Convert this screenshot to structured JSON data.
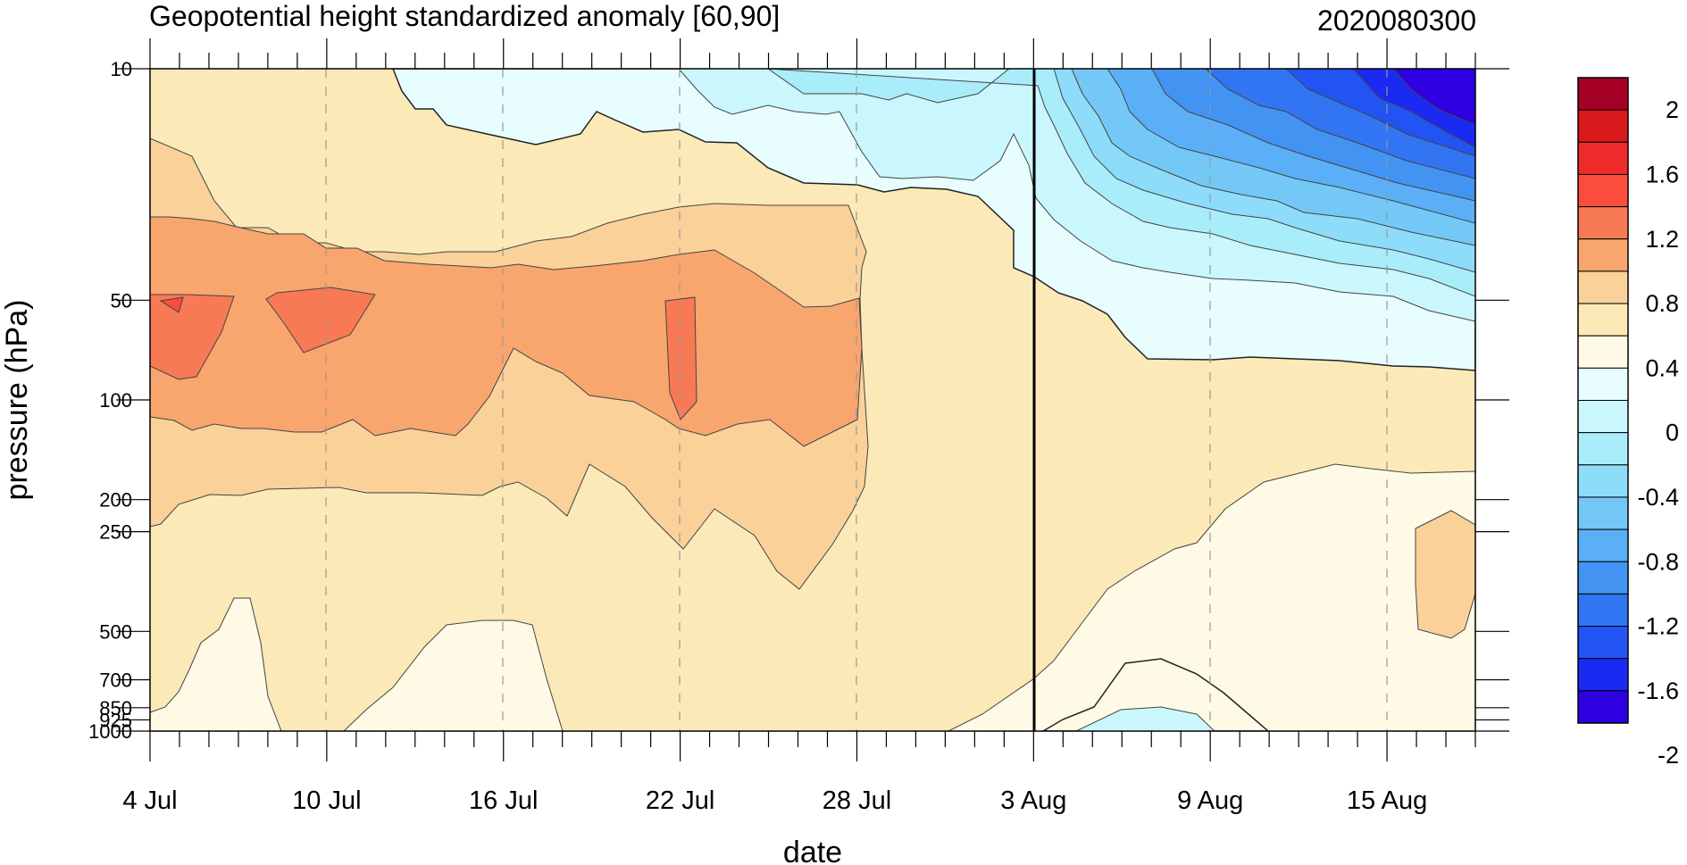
{
  "chart_data": {
    "type": "heatmap",
    "title": "Geopotential height standardized anomaly [60,90]",
    "timestamp": "2020080300",
    "xlabel": "date",
    "ylabel": "pressure (hPa)",
    "x_tick_labels": [
      "4 Jul",
      "10 Jul",
      "16 Jul",
      "22 Jul",
      "28 Jul",
      "3 Aug",
      "9 Aug",
      "15 Aug"
    ],
    "x_tick_days": [
      0,
      6,
      12,
      18,
      24,
      30,
      36,
      42
    ],
    "x_range_days": [
      0,
      45
    ],
    "minor_tick_step_days": 1,
    "current_day": 30,
    "y_tick_labels": [
      "10",
      "50",
      "100",
      "200",
      "250",
      "500",
      "700",
      "850",
      "925",
      "1000"
    ],
    "y_tick_values": [
      10,
      50,
      100,
      200,
      250,
      500,
      700,
      850,
      925,
      1000
    ],
    "y_range": [
      10,
      1000
    ],
    "y_scale": "log-reversed",
    "colorbar": {
      "labels": [
        "2",
        "1.6",
        "1.2",
        "0.8",
        "0.4",
        "0",
        "-0.4",
        "-0.8",
        "-1.2",
        "-1.6",
        "-2"
      ],
      "colors": [
        "#a50026",
        "#d7191c",
        "#ef2b2b",
        "#fb4d3d",
        "#f87a55",
        "#f9a56e",
        "#f9d199",
        "#fce9b8",
        "#fefae6",
        "#e7fdfe",
        "#c9f7fd",
        "#a9edfb",
        "#8ddcfa",
        "#74c8f6",
        "#5aaff6",
        "#4393f3",
        "#3175f3",
        "#2254f4",
        "#1a2af1",
        "#2f00e0"
      ]
    }
  }
}
